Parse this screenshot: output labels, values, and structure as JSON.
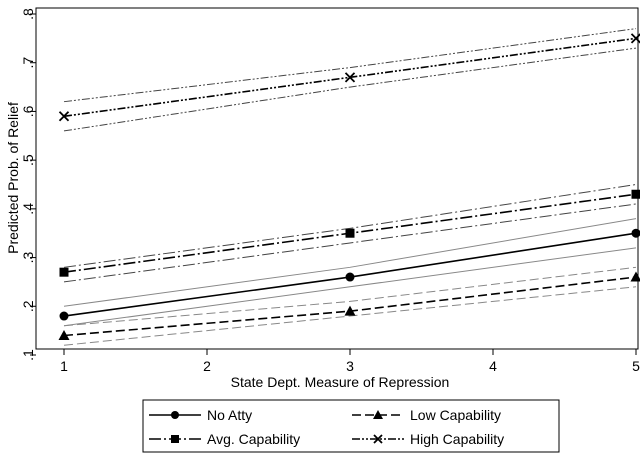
{
  "chart_data": {
    "type": "line",
    "title": "",
    "xlabel": "State Dept. Measure of Repression",
    "ylabel": "Predicted Prob. of Relief",
    "xlim": [
      1,
      5
    ],
    "ylim": [
      0.1,
      0.8
    ],
    "x_ticks": [
      "1",
      "2",
      "3",
      "4",
      "5"
    ],
    "x_tick_values": [
      1,
      2,
      3,
      4,
      5
    ],
    "y_ticks": [
      ".1",
      ".2",
      ".3",
      ".4",
      ".5",
      ".6",
      ".7",
      ".8"
    ],
    "y_tick_values": [
      0.1,
      0.2,
      0.3,
      0.4,
      0.5,
      0.6,
      0.7,
      0.8
    ],
    "grid": false,
    "legend_position": "bottom",
    "x": [
      1,
      3,
      5
    ],
    "series": [
      {
        "name": "No Atty",
        "values": [
          0.18,
          0.26,
          0.35
        ],
        "ci_upper": [
          0.2,
          0.28,
          0.38
        ],
        "ci_lower": [
          0.16,
          0.24,
          0.32
        ],
        "marker": "circle",
        "dash": "solid",
        "ci_color": "#888888"
      },
      {
        "name": "Low Capability",
        "values": [
          0.14,
          0.19,
          0.26
        ],
        "ci_upper": [
          0.16,
          0.21,
          0.28
        ],
        "ci_lower": [
          0.12,
          0.18,
          0.24
        ],
        "marker": "triangle",
        "dash": "dash",
        "ci_color": "#888888"
      },
      {
        "name": "Avg. Capability",
        "values": [
          0.27,
          0.35,
          0.43
        ],
        "ci_upper": [
          0.28,
          0.36,
          0.45
        ],
        "ci_lower": [
          0.25,
          0.33,
          0.41
        ],
        "marker": "square",
        "dash": "longdash-dot",
        "ci_color": "#444444"
      },
      {
        "name": "High Capability",
        "values": [
          0.59,
          0.67,
          0.75
        ],
        "ci_upper": [
          0.62,
          0.69,
          0.77
        ],
        "ci_lower": [
          0.56,
          0.65,
          0.73
        ],
        "marker": "x",
        "dash": "dash-dot-dot",
        "ci_color": "#444444"
      }
    ],
    "legend": [
      {
        "label": "No Atty",
        "series": 0
      },
      {
        "label": "Low Capability",
        "series": 1
      },
      {
        "label": "Avg. Capability",
        "series": 2
      },
      {
        "label": "High Capability",
        "series": 3
      }
    ]
  }
}
